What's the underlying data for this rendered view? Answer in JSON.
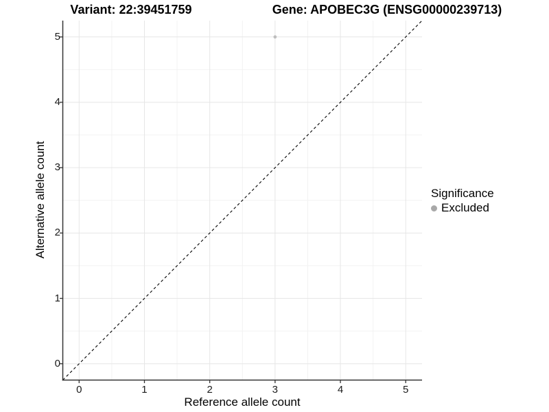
{
  "header": {
    "variant_title": "Variant: 22:39451759",
    "gene_title": "Gene: APOBEC3G (ENSG00000239713)"
  },
  "legend": {
    "title": "Significance",
    "items": [
      {
        "label": "Excluded",
        "swatch_color": "#a8a8a8"
      }
    ]
  },
  "colors": {
    "point": "#bebebe",
    "grid_major": "#e6e6e6",
    "grid_minor": "#f2f2f2",
    "axis_line": "#333333",
    "tick_mark": "#333333",
    "reference_line": "#000000"
  },
  "chart_data": {
    "type": "scatter",
    "title": "Variant: 22:39451759  |  Gene: APOBEC3G (ENSG00000239713)",
    "xlabel": "Reference allele count",
    "ylabel": "Alternative allele count",
    "xlim": [
      -0.25,
      5.25
    ],
    "ylim": [
      -0.25,
      5.25
    ],
    "x_ticks": [
      0,
      1,
      2,
      3,
      4,
      5
    ],
    "y_ticks": [
      0,
      1,
      2,
      3,
      4,
      5
    ],
    "grid": "major and minor (minor at 0.5 steps)",
    "legend_position": "right",
    "series": [
      {
        "name": "Excluded",
        "color": "#bebebe",
        "marker": "circle",
        "points": [
          {
            "x": 3,
            "y": 5
          }
        ]
      }
    ],
    "reference_line": {
      "type": "identity (y = x)",
      "style": "dashed",
      "color": "#000000",
      "from": [
        -0.25,
        -0.25
      ],
      "to": [
        5.25,
        5.25
      ]
    }
  }
}
